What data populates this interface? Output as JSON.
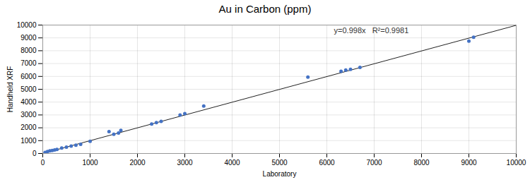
{
  "chart_data": {
    "type": "scatter",
    "title": "Au in Carbon (ppm)",
    "xlabel": "Laboratory",
    "ylabel": "Handheld XRF",
    "annotation": "y=0.998x   R²=0.9981",
    "x": [
      50,
      100,
      150,
      200,
      250,
      300,
      400,
      500,
      600,
      700,
      800,
      1000,
      1400,
      1500,
      1600,
      1650,
      2300,
      2400,
      2500,
      2900,
      3000,
      3400,
      5600,
      6300,
      6400,
      6500,
      6700,
      9000,
      9100
    ],
    "values": [
      80,
      150,
      200,
      230,
      270,
      310,
      420,
      490,
      580,
      650,
      720,
      950,
      1700,
      1500,
      1600,
      1800,
      2300,
      2400,
      2500,
      3000,
      3100,
      3700,
      5950,
      6400,
      6500,
      6550,
      6700,
      8750,
      9050
    ],
    "color": "#4472C4",
    "trendline": {
      "x": [
        0,
        10000
      ],
      "values": [
        0,
        9980
      ],
      "color": "#222222"
    },
    "xlim": [
      0,
      10000
    ],
    "ylim": [
      0,
      10000
    ],
    "xticks": [
      0,
      1000,
      2000,
      3000,
      4000,
      5000,
      6000,
      7000,
      8000,
      9000,
      10000
    ],
    "yticks": [
      0,
      1000,
      2000,
      3000,
      4000,
      5000,
      6000,
      7000,
      8000,
      9000,
      10000
    ],
    "grid": true
  }
}
